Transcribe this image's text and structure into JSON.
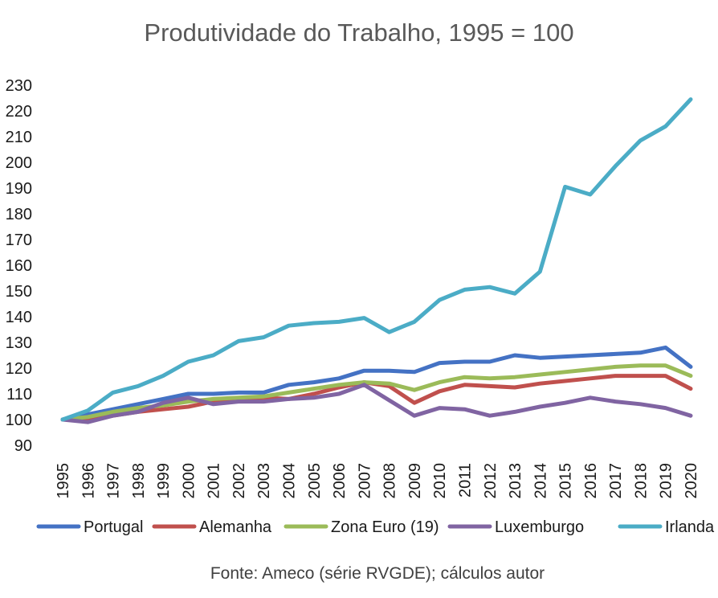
{
  "chart_data": {
    "type": "line",
    "title": "Produtividade do Trabalho, 1995 = 100",
    "source_note": "Fonte: Ameco (série RVGDE); cálculos autor",
    "xlabel": "",
    "ylabel": "",
    "ylim": [
      90,
      230
    ],
    "yticks": [
      90,
      100,
      110,
      120,
      130,
      140,
      150,
      160,
      170,
      180,
      190,
      200,
      210,
      220,
      230
    ],
    "grid": false,
    "legend_position": "bottom",
    "x": [
      "1995",
      "1996",
      "1997",
      "1998",
      "1999",
      "2000",
      "2001",
      "2002",
      "2003",
      "2004",
      "2005",
      "2006",
      "2007",
      "2008",
      "2009",
      "2010",
      "2011",
      "2012",
      "2013",
      "2014",
      "2015",
      "2016",
      "2017",
      "2018",
      "2019",
      "2020"
    ],
    "series": [
      {
        "name": "Portugal",
        "color": "#4472C4",
        "values": [
          100,
          102,
          104,
          106,
          108,
          110,
          110,
          110.5,
          110.5,
          113.5,
          114.5,
          116,
          119,
          119,
          118.5,
          122,
          122.5,
          122.5,
          125,
          124,
          124.5,
          125,
          125.5,
          126,
          128,
          120.5
        ]
      },
      {
        "name": "Alemanha",
        "color": "#C0504D",
        "values": [
          100,
          100,
          101.5,
          103,
          104,
          105,
          107,
          107.5,
          108.5,
          108,
          110,
          112.5,
          114.5,
          113,
          106.5,
          111,
          113.5,
          113,
          112.5,
          114,
          115,
          116,
          117,
          117,
          117,
          112
        ]
      },
      {
        "name": "Zona Euro (19)",
        "color": "#9BBB59",
        "values": [
          100,
          101,
          103,
          104.5,
          105.5,
          107,
          108,
          108.5,
          109,
          110.5,
          112,
          113.5,
          114.5,
          114,
          111.5,
          114.5,
          116.5,
          116,
          116.5,
          117.5,
          118.5,
          119.5,
          120.5,
          121,
          121,
          117
        ]
      },
      {
        "name": "Luxemburgo",
        "color": "#8064A2",
        "values": [
          100,
          99,
          101.5,
          103,
          106.5,
          108.5,
          106,
          107,
          107,
          108,
          108.5,
          110,
          113.5,
          107.5,
          101.5,
          104.5,
          104,
          101.5,
          103,
          105,
          106.5,
          108.5,
          107,
          106,
          104.5,
          101.5
        ]
      },
      {
        "name": "Irlanda",
        "color": "#4BACC6",
        "values": [
          100,
          103.5,
          110.5,
          113,
          117,
          122.5,
          125,
          130.5,
          132,
          136.5,
          137.5,
          138,
          139.5,
          134,
          138,
          146.5,
          150.5,
          151.5,
          149,
          157.5,
          190.5,
          187.5,
          198.5,
          208.5,
          214,
          224.5
        ]
      }
    ]
  }
}
